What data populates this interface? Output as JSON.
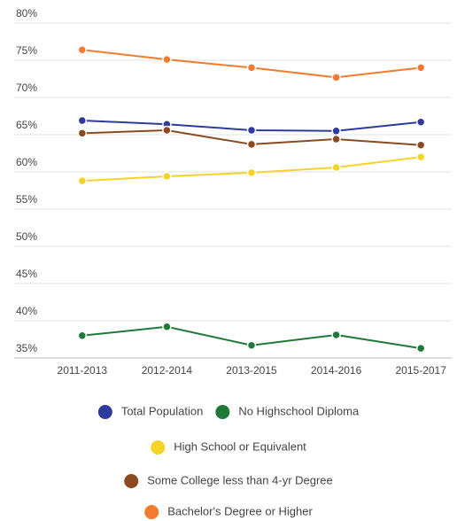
{
  "chart_data": {
    "type": "line",
    "categories": [
      "2011-2013",
      "2012-2014",
      "2013-2015",
      "2014-2016",
      "2015-2017"
    ],
    "series": [
      {
        "name": "Total Population",
        "color": "#2e3a9e",
        "values": [
          66.9,
          66.4,
          65.6,
          65.5,
          66.7
        ]
      },
      {
        "name": "No Highschool Diploma",
        "color": "#1f7a3a",
        "values": [
          38.0,
          39.2,
          36.7,
          38.1,
          36.3
        ]
      },
      {
        "name": "High School or Equivalent",
        "color": "#f5d327",
        "values": [
          58.8,
          59.4,
          59.9,
          60.6,
          62.0
        ]
      },
      {
        "name": "Some College less than 4-yr Degree",
        "color": "#8b4a1f",
        "values": [
          65.2,
          65.6,
          63.7,
          64.4,
          63.6
        ]
      },
      {
        "name": "Bachelor's Degree or Higher",
        "color": "#f47a2e",
        "values": [
          76.4,
          75.1,
          74.0,
          72.7,
          74.0
        ]
      }
    ],
    "ylim": [
      35,
      80
    ],
    "yticks": [
      {
        "value": 35,
        "label": "35%"
      },
      {
        "value": 40,
        "label": "40%"
      },
      {
        "value": 45,
        "label": "45%"
      },
      {
        "value": 50,
        "label": "50%"
      },
      {
        "value": 55,
        "label": "55%"
      },
      {
        "value": 60,
        "label": "60%"
      },
      {
        "value": 65,
        "label": "65%"
      },
      {
        "value": 70,
        "label": "70%"
      },
      {
        "value": 75,
        "label": "75%"
      },
      {
        "value": 80,
        "label": "80%"
      }
    ],
    "grid": true,
    "legend": "bottom"
  }
}
